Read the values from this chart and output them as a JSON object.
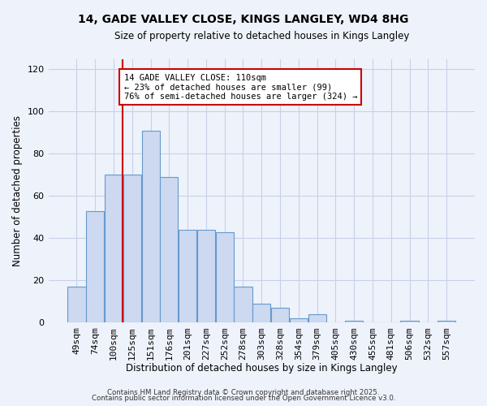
{
  "title": "14, GADE VALLEY CLOSE, KINGS LANGLEY, WD4 8HG",
  "subtitle": "Size of property relative to detached houses in Kings Langley",
  "xlabel": "Distribution of detached houses by size in Kings Langley",
  "ylabel": "Number of detached properties",
  "bar_labels": [
    "49sqm",
    "74sqm",
    "100sqm",
    "125sqm",
    "151sqm",
    "176sqm",
    "201sqm",
    "227sqm",
    "252sqm",
    "278sqm",
    "303sqm",
    "328sqm",
    "354sqm",
    "379sqm",
    "405sqm",
    "430sqm",
    "455sqm",
    "481sqm",
    "506sqm",
    "532sqm",
    "557sqm"
  ],
  "bar_values": [
    17,
    53,
    70,
    70,
    91,
    69,
    44,
    44,
    43,
    17,
    9,
    7,
    2,
    4,
    0,
    1,
    0,
    0,
    1,
    0,
    1
  ],
  "bar_color": "#ccd9f0",
  "bar_edge_color": "#6699cc",
  "vline_x_index": 2.5,
  "vline_color": "#cc0000",
  "ylim": [
    0,
    125
  ],
  "yticks": [
    0,
    20,
    40,
    60,
    80,
    100,
    120
  ],
  "annotation_title": "14 GADE VALLEY CLOSE: 110sqm",
  "annotation_line1": "← 23% of detached houses are smaller (99)",
  "annotation_line2": "76% of semi-detached houses are larger (324) →",
  "footer1": "Contains HM Land Registry data © Crown copyright and database right 2025.",
  "footer2": "Contains public sector information licensed under the Open Government Licence v3.0.",
  "bg_color": "#eef2fb",
  "grid_color": "#c8d0e8"
}
